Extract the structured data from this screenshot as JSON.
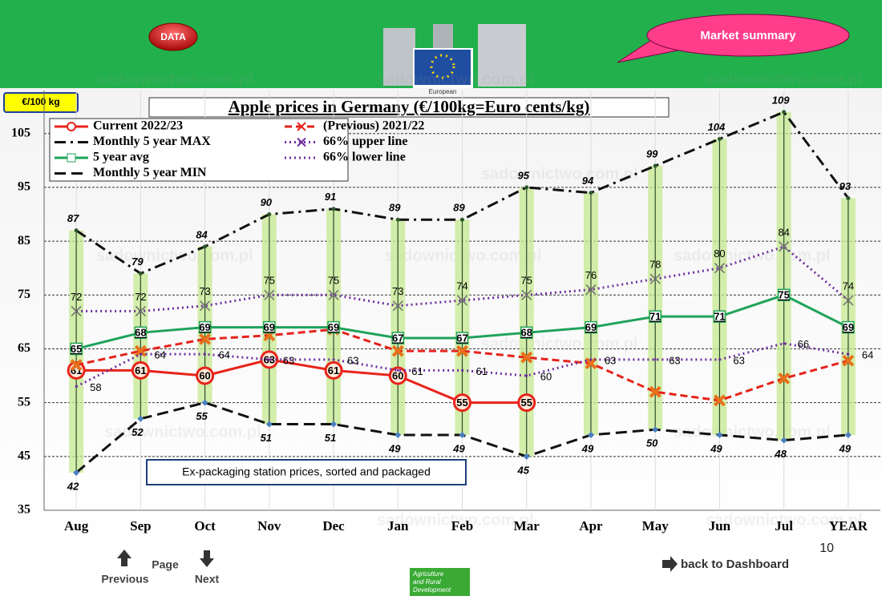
{
  "header": {
    "button": "DATA",
    "logo_caption": "European",
    "callout": "Market summary"
  },
  "watermark": "sadownictwo.com.pl",
  "chart_data": {
    "type": "line",
    "title": "Apple prices in Germany (€/100kg=Euro cents/kg)",
    "y_label": "€/100 kg",
    "annotation": "Ex-packaging station prices, sorted and packaged",
    "categories": [
      "Aug",
      "Sep",
      "Oct",
      "Nov",
      "Dec",
      "Jan",
      "Feb",
      "Mar",
      "Apr",
      "May",
      "Jun",
      "Jul",
      "YEAR"
    ],
    "ylim": [
      35,
      113
    ],
    "yticks": [
      35,
      45,
      55,
      65,
      75,
      85,
      95,
      105
    ],
    "grid": true,
    "series": [
      {
        "name": "Current 2022/23",
        "color": "#e8231a",
        "values": [
          61,
          61,
          60,
          63,
          61,
          60,
          55,
          55,
          null,
          null,
          null,
          null,
          null
        ]
      },
      {
        "name": "(Previous) 2021/22",
        "color": "#e5231b",
        "values": [
          62,
          64.6,
          66.8,
          67.5,
          68.6,
          64.6,
          64.6,
          63.4,
          62.3,
          57,
          55.4,
          59.5,
          62.8
        ]
      },
      {
        "name": "Monthly 5 year MAX",
        "color": "#111111",
        "values": [
          87,
          79,
          84,
          90,
          91,
          89,
          89,
          95,
          94,
          99,
          104,
          109,
          93
        ]
      },
      {
        "name": "66% upper line",
        "color": "#7030a0",
        "values": [
          72,
          72,
          73,
          75,
          75,
          73,
          74,
          75,
          76,
          78,
          80,
          84,
          74
        ]
      },
      {
        "name": "5 year avg",
        "color": "#1fa35a",
        "values": [
          65,
          68,
          69,
          69,
          69,
          67,
          67,
          68,
          69,
          71,
          71,
          75,
          69
        ]
      },
      {
        "name": "66% lower line",
        "color": "#7030a0",
        "values": [
          58,
          64,
          64,
          63,
          63,
          61,
          61,
          60,
          63,
          63,
          63,
          66,
          64
        ]
      },
      {
        "name": "Monthly 5 year MIN",
        "color": "#111111",
        "values": [
          42,
          52,
          55,
          51,
          51,
          49,
          49,
          45,
          49,
          50,
          49,
          48,
          49
        ]
      }
    ]
  },
  "footer": {
    "page": "Page",
    "previous": "Previous",
    "next": "Next",
    "dashboard": "back to Dashboard",
    "page_number": "10",
    "dg_label": [
      "Agriculture",
      "and Rural",
      "Development"
    ]
  }
}
